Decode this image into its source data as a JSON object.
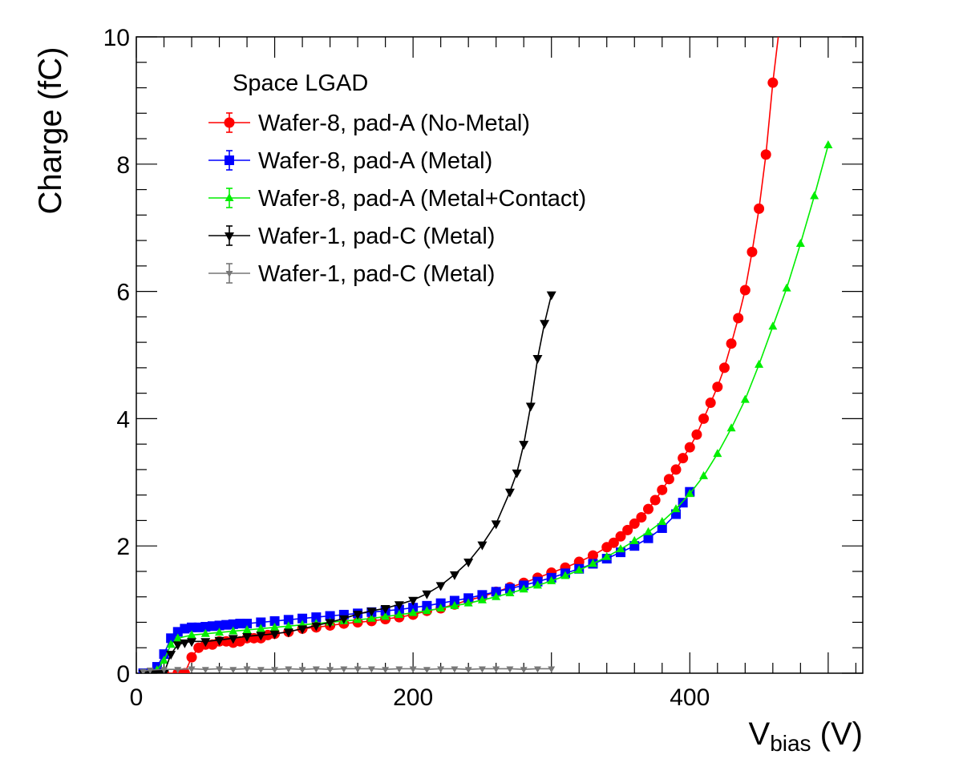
{
  "chart_data": {
    "type": "line",
    "xlabel_main": "V",
    "xlabel_sub": "bias",
    "xlabel_unit": " (V)",
    "ylabel": "Charge (fC)",
    "xlim": [
      0,
      525
    ],
    "ylim": [
      0,
      10
    ],
    "x_ticks": [
      "0",
      "200",
      "400"
    ],
    "y_ticks": [
      "0",
      "2",
      "4",
      "6",
      "8",
      "10"
    ],
    "legend_header": "Space LGAD",
    "legend_position": "top-left",
    "series": [
      {
        "name": "Wafer-8, pad-A (No-Metal)",
        "color": "#ff0000",
        "marker": "circle",
        "x": [
          10,
          20,
          30,
          35,
          40,
          45,
          50,
          55,
          60,
          65,
          70,
          75,
          80,
          85,
          90,
          95,
          100,
          110,
          120,
          130,
          140,
          150,
          160,
          170,
          180,
          190,
          200,
          210,
          220,
          230,
          240,
          250,
          260,
          270,
          280,
          290,
          300,
          310,
          320,
          330,
          340,
          345,
          350,
          355,
          360,
          365,
          370,
          375,
          380,
          385,
          390,
          395,
          400,
          405,
          410,
          415,
          420,
          425,
          430,
          435,
          440,
          445,
          450,
          455,
          460,
          465
        ],
        "y": [
          0,
          0,
          0,
          0,
          0.25,
          0.4,
          0.45,
          0.45,
          0.5,
          0.5,
          0.48,
          0.5,
          0.55,
          0.55,
          0.55,
          0.6,
          0.62,
          0.65,
          0.7,
          0.72,
          0.75,
          0.78,
          0.8,
          0.82,
          0.85,
          0.88,
          0.92,
          0.98,
          1.02,
          1.08,
          1.15,
          1.2,
          1.28,
          1.35,
          1.42,
          1.5,
          1.58,
          1.66,
          1.75,
          1.85,
          1.98,
          2.05,
          2.15,
          2.25,
          2.35,
          2.45,
          2.58,
          2.72,
          2.88,
          3.05,
          3.2,
          3.38,
          3.55,
          3.75,
          4.0,
          4.25,
          4.5,
          4.8,
          5.18,
          5.58,
          6.02,
          6.62,
          7.3,
          8.15,
          9.28,
          10.2
        ]
      },
      {
        "name": "Wafer-8, pad-A (Metal)",
        "color": "#0000ff",
        "marker": "square",
        "x": [
          5,
          10,
          15,
          20,
          25,
          30,
          35,
          40,
          45,
          50,
          55,
          60,
          65,
          70,
          75,
          80,
          90,
          100,
          110,
          120,
          130,
          140,
          150,
          160,
          170,
          180,
          190,
          200,
          210,
          220,
          230,
          240,
          250,
          260,
          270,
          280,
          290,
          300,
          310,
          320,
          330,
          340,
          350,
          360,
          370,
          380,
          390,
          395,
          400
        ],
        "y": [
          0,
          0,
          0.1,
          0.3,
          0.55,
          0.65,
          0.7,
          0.72,
          0.72,
          0.73,
          0.74,
          0.75,
          0.76,
          0.77,
          0.78,
          0.78,
          0.8,
          0.82,
          0.84,
          0.86,
          0.88,
          0.9,
          0.92,
          0.94,
          0.96,
          0.98,
          1.0,
          1.03,
          1.06,
          1.1,
          1.14,
          1.18,
          1.23,
          1.28,
          1.33,
          1.38,
          1.44,
          1.5,
          1.57,
          1.64,
          1.72,
          1.8,
          1.9,
          2.0,
          2.12,
          2.28,
          2.5,
          2.68,
          2.85
        ]
      },
      {
        "name": "Wafer-8, pad-A (Metal+Contact)",
        "color": "#00ee00",
        "marker": "triangle-up",
        "x": [
          5,
          10,
          15,
          20,
          25,
          30,
          40,
          50,
          60,
          70,
          80,
          90,
          100,
          110,
          120,
          130,
          140,
          150,
          160,
          170,
          180,
          190,
          200,
          210,
          220,
          230,
          240,
          250,
          260,
          270,
          280,
          290,
          300,
          310,
          320,
          330,
          340,
          350,
          360,
          370,
          380,
          390,
          400,
          410,
          420,
          430,
          440,
          450,
          460,
          470,
          480,
          490,
          500
        ],
        "y": [
          0,
          0,
          0.05,
          0.2,
          0.45,
          0.55,
          0.6,
          0.62,
          0.64,
          0.66,
          0.68,
          0.7,
          0.72,
          0.74,
          0.76,
          0.78,
          0.8,
          0.82,
          0.84,
          0.86,
          0.89,
          0.92,
          0.95,
          0.98,
          1.02,
          1.06,
          1.1,
          1.15,
          1.2,
          1.26,
          1.32,
          1.38,
          1.45,
          1.53,
          1.62,
          1.72,
          1.83,
          1.95,
          2.08,
          2.22,
          2.38,
          2.58,
          2.82,
          3.1,
          3.45,
          3.85,
          4.3,
          4.85,
          5.45,
          6.05,
          6.75,
          7.5,
          8.3
        ]
      },
      {
        "name": "Wafer-1, pad-C (Metal)",
        "color": "#000000",
        "marker": "triangle-down",
        "x": [
          5,
          10,
          15,
          20,
          25,
          30,
          35,
          40,
          50,
          60,
          70,
          80,
          90,
          100,
          110,
          120,
          130,
          140,
          150,
          160,
          170,
          180,
          190,
          200,
          210,
          220,
          230,
          240,
          250,
          260,
          270,
          275,
          280,
          285,
          290,
          295,
          300
        ],
        "y": [
          0,
          0,
          0,
          0,
          0.3,
          0.45,
          0.48,
          0.5,
          0.5,
          0.52,
          0.55,
          0.58,
          0.6,
          0.62,
          0.65,
          0.7,
          0.75,
          0.8,
          0.86,
          0.93,
          0.98,
          1.02,
          1.08,
          1.15,
          1.25,
          1.38,
          1.55,
          1.75,
          2.02,
          2.35,
          2.85,
          3.15,
          3.6,
          4.2,
          4.95,
          5.5,
          5.95
        ]
      },
      {
        "name": "Wafer-1, pad-C (Metal)",
        "color": "#777777",
        "marker": "triangle-down-small",
        "x": [
          5,
          10,
          20,
          30,
          40,
          50,
          60,
          70,
          80,
          90,
          100,
          110,
          120,
          130,
          140,
          150,
          160,
          170,
          180,
          190,
          200,
          210,
          220,
          230,
          240,
          250,
          260,
          270,
          280,
          290,
          300
        ],
        "y": [
          0.03,
          0.05,
          0.06,
          0.06,
          0.07,
          0.06,
          0.07,
          0.06,
          0.07,
          0.06,
          0.06,
          0.07,
          0.06,
          0.07,
          0.06,
          0.07,
          0.07,
          0.07,
          0.06,
          0.07,
          0.07,
          0.06,
          0.07,
          0.07,
          0.06,
          0.07,
          0.07,
          0.07,
          0.06,
          0.07,
          0.07
        ]
      }
    ]
  }
}
